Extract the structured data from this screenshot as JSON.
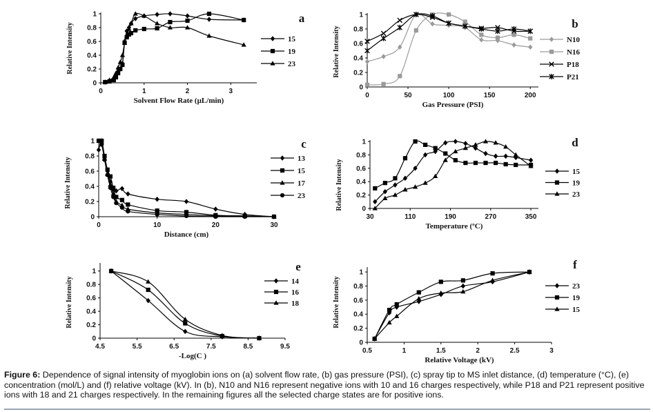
{
  "chart_data": [
    {
      "id": "a",
      "panel_label": "a",
      "type": "line",
      "xlabel": "Solvent Flow Rate (µL/min)",
      "ylabel": "Relative Intensity",
      "xlim": [
        0,
        3.6
      ],
      "ylim": [
        0,
        1
      ],
      "xticks": [
        0,
        1,
        2,
        3
      ],
      "yticks": [
        0,
        0.2,
        0.4,
        0.6,
        0.8,
        1
      ],
      "ytick_labels": [
        "0",
        "0.2",
        "0.4",
        "0.6",
        "0.8",
        "1"
      ],
      "series": [
        {
          "name": "15",
          "marker": "diamond",
          "color": "#000000",
          "x": [
            0.1,
            0.2,
            0.3,
            0.35,
            0.4,
            0.45,
            0.5,
            0.55,
            0.6,
            0.65,
            0.7,
            0.8,
            1.0,
            1.3,
            1.6,
            2.0,
            2.5,
            3.3
          ],
          "y": [
            0.01,
            0.03,
            0.06,
            0.1,
            0.16,
            0.2,
            0.28,
            0.6,
            0.75,
            0.8,
            0.86,
            0.93,
            0.97,
            0.99,
            1.0,
            0.97,
            0.92,
            0.91
          ]
        },
        {
          "name": "19",
          "marker": "square",
          "color": "#000000",
          "x": [
            0.1,
            0.2,
            0.3,
            0.35,
            0.4,
            0.45,
            0.5,
            0.55,
            0.6,
            0.65,
            0.7,
            0.8,
            1.0,
            1.3,
            1.6,
            2.0,
            2.5,
            3.3
          ],
          "y": [
            0.01,
            0.02,
            0.04,
            0.08,
            0.14,
            0.2,
            0.26,
            0.58,
            0.66,
            0.7,
            0.72,
            0.76,
            0.78,
            0.79,
            0.88,
            0.9,
            1.0,
            0.91
          ]
        },
        {
          "name": "23",
          "marker": "triangle",
          "color": "#000000",
          "x": [
            0.1,
            0.2,
            0.3,
            0.35,
            0.4,
            0.45,
            0.5,
            0.55,
            0.6,
            0.65,
            0.7,
            0.8,
            1.0,
            1.3,
            1.6,
            2.0,
            2.5,
            3.3
          ],
          "y": [
            0.01,
            0.04,
            0.08,
            0.14,
            0.22,
            0.3,
            0.4,
            0.58,
            0.68,
            0.78,
            0.86,
            1.0,
            0.97,
            0.86,
            0.8,
            0.8,
            0.68,
            0.55
          ]
        }
      ]
    },
    {
      "id": "b",
      "panel_label": "b",
      "type": "line",
      "xlabel": "Gas Pressure (PSI)",
      "ylabel": "Relative Intensity",
      "xlim": [
        0,
        210
      ],
      "ylim": [
        0,
        1
      ],
      "xticks": [
        0,
        50,
        100,
        150,
        200
      ],
      "yticks": [
        0,
        0.2,
        0.4,
        0.6,
        0.8,
        1
      ],
      "ytick_labels": [
        "0",
        "0.2",
        "0.4",
        "0.6",
        "0.8",
        "1"
      ],
      "series": [
        {
          "name": "N10",
          "marker": "diamond",
          "color": "#9a9a9a",
          "x": [
            0,
            20,
            40,
            60,
            80,
            100,
            120,
            140,
            160,
            180,
            200
          ],
          "y": [
            0.35,
            0.42,
            0.55,
            1.0,
            0.87,
            0.85,
            0.82,
            0.65,
            0.64,
            0.58,
            0.55
          ]
        },
        {
          "name": "N16",
          "marker": "square",
          "color": "#9a9a9a",
          "x": [
            0,
            20,
            40,
            60,
            80,
            100,
            120,
            140,
            160,
            180,
            200
          ],
          "y": [
            0.03,
            0.04,
            0.15,
            0.78,
            1.0,
            1.0,
            0.9,
            0.72,
            0.68,
            0.72,
            0.67
          ]
        },
        {
          "name": "P18",
          "marker": "cross",
          "color": "#000000",
          "x": [
            0,
            20,
            40,
            60,
            80,
            100,
            120,
            140,
            160,
            180,
            200
          ],
          "y": [
            0.63,
            0.74,
            0.92,
            1.0,
            0.96,
            0.88,
            0.84,
            0.81,
            0.82,
            0.77,
            0.77
          ]
        },
        {
          "name": "P21",
          "marker": "star",
          "color": "#000000",
          "x": [
            0,
            20,
            40,
            60,
            80,
            100,
            120,
            140,
            160,
            180,
            200
          ],
          "y": [
            0.5,
            0.67,
            0.82,
            1.0,
            0.98,
            0.88,
            0.84,
            0.8,
            0.77,
            0.8,
            0.77
          ]
        }
      ]
    },
    {
      "id": "c",
      "panel_label": "c",
      "type": "line",
      "xlabel": "Distance (cm)",
      "ylabel": "Relative Intensity",
      "xlim": [
        0,
        30
      ],
      "ylim": [
        0,
        1
      ],
      "xticks": [
        0,
        10,
        20,
        30
      ],
      "yticks": [
        0,
        0.2,
        0.4,
        0.6,
        0.8,
        1
      ],
      "ytick_labels": [
        "0",
        "0.2",
        "0.4",
        "0.6",
        "0.8",
        "1"
      ],
      "series": [
        {
          "name": "13",
          "marker": "diamond",
          "color": "#000000",
          "x": [
            0,
            0.5,
            1,
            1.5,
            2,
            2.5,
            3,
            4,
            5,
            10,
            15,
            20,
            25,
            30
          ],
          "y": [
            0.88,
            1.0,
            0.78,
            0.6,
            0.46,
            0.36,
            0.34,
            0.37,
            0.3,
            0.23,
            0.2,
            0.1,
            0.03,
            0.0
          ]
        },
        {
          "name": "15",
          "marker": "square",
          "color": "#000000",
          "x": [
            0,
            0.5,
            1,
            1.5,
            2,
            2.5,
            3,
            4,
            5,
            10,
            15,
            20,
            25,
            30
          ],
          "y": [
            1.0,
            1.0,
            0.8,
            0.62,
            0.53,
            0.38,
            0.26,
            0.22,
            0.16,
            0.08,
            0.06,
            0.02,
            0.01,
            0.0
          ]
        },
        {
          "name": "17",
          "marker": "triangle",
          "color": "#000000",
          "x": [
            0,
            0.5,
            1,
            1.5,
            2,
            2.5,
            3,
            4,
            5,
            10,
            15,
            20,
            25,
            30
          ],
          "y": [
            1.0,
            0.98,
            0.76,
            0.56,
            0.42,
            0.3,
            0.2,
            0.15,
            0.1,
            0.05,
            0.03,
            0.01,
            0.01,
            0.0
          ]
        },
        {
          "name": "23",
          "marker": "circle",
          "color": "#000000",
          "x": [
            0,
            0.5,
            1,
            1.5,
            2,
            2.5,
            3,
            4,
            5,
            10,
            15,
            20,
            25,
            30
          ],
          "y": [
            1.0,
            0.95,
            0.75,
            0.55,
            0.38,
            0.26,
            0.18,
            0.12,
            0.07,
            0.03,
            0.01,
            0.0,
            0.0,
            0.0
          ]
        }
      ]
    },
    {
      "id": "d",
      "panel_label": "d",
      "type": "line",
      "xlabel": "Temperature (ºC)",
      "ylabel": "Relative Intensity",
      "xlim": [
        30,
        365
      ],
      "ylim": [
        0,
        1
      ],
      "xticks": [
        30,
        110,
        190,
        270,
        350
      ],
      "yticks": [
        0,
        0.2,
        0.4,
        0.6,
        0.8,
        1
      ],
      "ytick_labels": [
        "0",
        "0.2",
        "0.4",
        "0.6",
        "0.8",
        "1"
      ],
      "series": [
        {
          "name": "15",
          "marker": "diamond",
          "color": "#000000",
          "x": [
            40,
            60,
            80,
            100,
            120,
            140,
            160,
            180,
            200,
            220,
            240,
            260,
            280,
            300,
            320,
            350
          ],
          "y": [
            0.1,
            0.25,
            0.35,
            0.45,
            0.6,
            0.8,
            0.85,
            0.98,
            1.0,
            0.97,
            0.9,
            0.82,
            0.78,
            0.78,
            0.76,
            0.72
          ]
        },
        {
          "name": "19",
          "marker": "square",
          "color": "#000000",
          "x": [
            40,
            60,
            80,
            100,
            120,
            140,
            160,
            180,
            200,
            220,
            240,
            260,
            280,
            300,
            320,
            350
          ],
          "y": [
            0.3,
            0.38,
            0.45,
            0.75,
            1.0,
            0.95,
            0.9,
            0.82,
            0.72,
            0.68,
            0.68,
            0.68,
            0.68,
            0.66,
            0.65,
            0.65
          ]
        },
        {
          "name": "23",
          "marker": "triangle",
          "color": "#000000",
          "x": [
            40,
            60,
            80,
            100,
            120,
            140,
            160,
            180,
            200,
            220,
            240,
            260,
            280,
            300,
            320,
            350
          ],
          "y": [
            0.0,
            0.15,
            0.2,
            0.28,
            0.32,
            0.38,
            0.48,
            0.72,
            0.85,
            0.9,
            0.95,
            1.0,
            0.98,
            0.92,
            0.8,
            0.63
          ]
        }
      ]
    },
    {
      "id": "e",
      "panel_label": "e",
      "type": "line",
      "xlabel": "-Log(C )",
      "ylabel": "Relative Intensity",
      "xlim": [
        4.5,
        9.5
      ],
      "ylim": [
        0,
        1.1
      ],
      "xticks": [
        4.5,
        5.5,
        6.5,
        7.5,
        8.5,
        9.5
      ],
      "yticks": [
        0,
        0.2,
        0.4,
        0.6,
        0.8,
        1
      ],
      "ytick_labels": [
        "0",
        "0.2",
        "0.4",
        "0.6",
        "0.8",
        "1"
      ],
      "series": [
        {
          "name": "14",
          "marker": "diamond",
          "color": "#000000",
          "x": [
            4.8,
            5.8,
            6.8,
            7.8,
            8.8
          ],
          "y": [
            1.0,
            0.56,
            0.1,
            0.02,
            0.0
          ]
        },
        {
          "name": "16",
          "marker": "square",
          "color": "#000000",
          "x": [
            4.8,
            5.8,
            6.8,
            7.8,
            8.8
          ],
          "y": [
            1.0,
            0.72,
            0.22,
            0.03,
            0.0
          ]
        },
        {
          "name": "18",
          "marker": "triangle",
          "color": "#000000",
          "x": [
            4.8,
            5.8,
            6.8,
            7.8,
            8.8
          ],
          "y": [
            1.0,
            0.84,
            0.28,
            0.04,
            0.0
          ]
        }
      ]
    },
    {
      "id": "f",
      "panel_label": "f",
      "type": "line",
      "xlabel": "Relative Voltage (kV)",
      "ylabel": "Relative Intensity",
      "xlim": [
        0.5,
        3
      ],
      "ylim": [
        0,
        1.05
      ],
      "xticks": [
        0.5,
        1,
        1.5,
        2,
        2.5,
        3
      ],
      "yticks": [
        0,
        0.2,
        0.4,
        0.6,
        0.8,
        1
      ],
      "ytick_labels": [
        "0",
        "0.2",
        "0.4",
        "0.6",
        "0.8",
        "1"
      ],
      "series": [
        {
          "name": "23",
          "marker": "diamond",
          "color": "#000000",
          "x": [
            0.6,
            0.8,
            0.9,
            1.2,
            1.5,
            1.8,
            2.2,
            2.7
          ],
          "y": [
            0.05,
            0.42,
            0.5,
            0.58,
            0.68,
            0.8,
            0.86,
            1.0
          ]
        },
        {
          "name": "19",
          "marker": "square",
          "color": "#000000",
          "x": [
            0.6,
            0.8,
            0.9,
            1.2,
            1.5,
            1.8,
            2.2,
            2.7
          ],
          "y": [
            0.05,
            0.46,
            0.54,
            0.71,
            0.86,
            0.88,
            0.98,
            1.0
          ]
        },
        {
          "name": "15",
          "marker": "triangle",
          "color": "#000000",
          "x": [
            0.6,
            0.8,
            0.9,
            1.2,
            1.5,
            1.8,
            2.2,
            2.7
          ],
          "y": [
            0.05,
            0.28,
            0.37,
            0.62,
            0.7,
            0.72,
            0.88,
            1.0
          ]
        }
      ]
    }
  ],
  "caption": {
    "label": "Figure 6:",
    "text": " Dependence of signal intensity of myoglobin ions on (a) solvent flow rate, (b) gas pressure (PSI), (c) spray tip to MS inlet distance, (d) temperature (°C), (e) concentration (mol/L) and (f) relative voltage (kV). In (b), N10 and N16 represent negative ions with 10 and 16 charges respectively, while P18 and P21 represent positive ions with 18 and 21 charges respectively. In the remaining figures all the selected charge states are for positive ions."
  }
}
